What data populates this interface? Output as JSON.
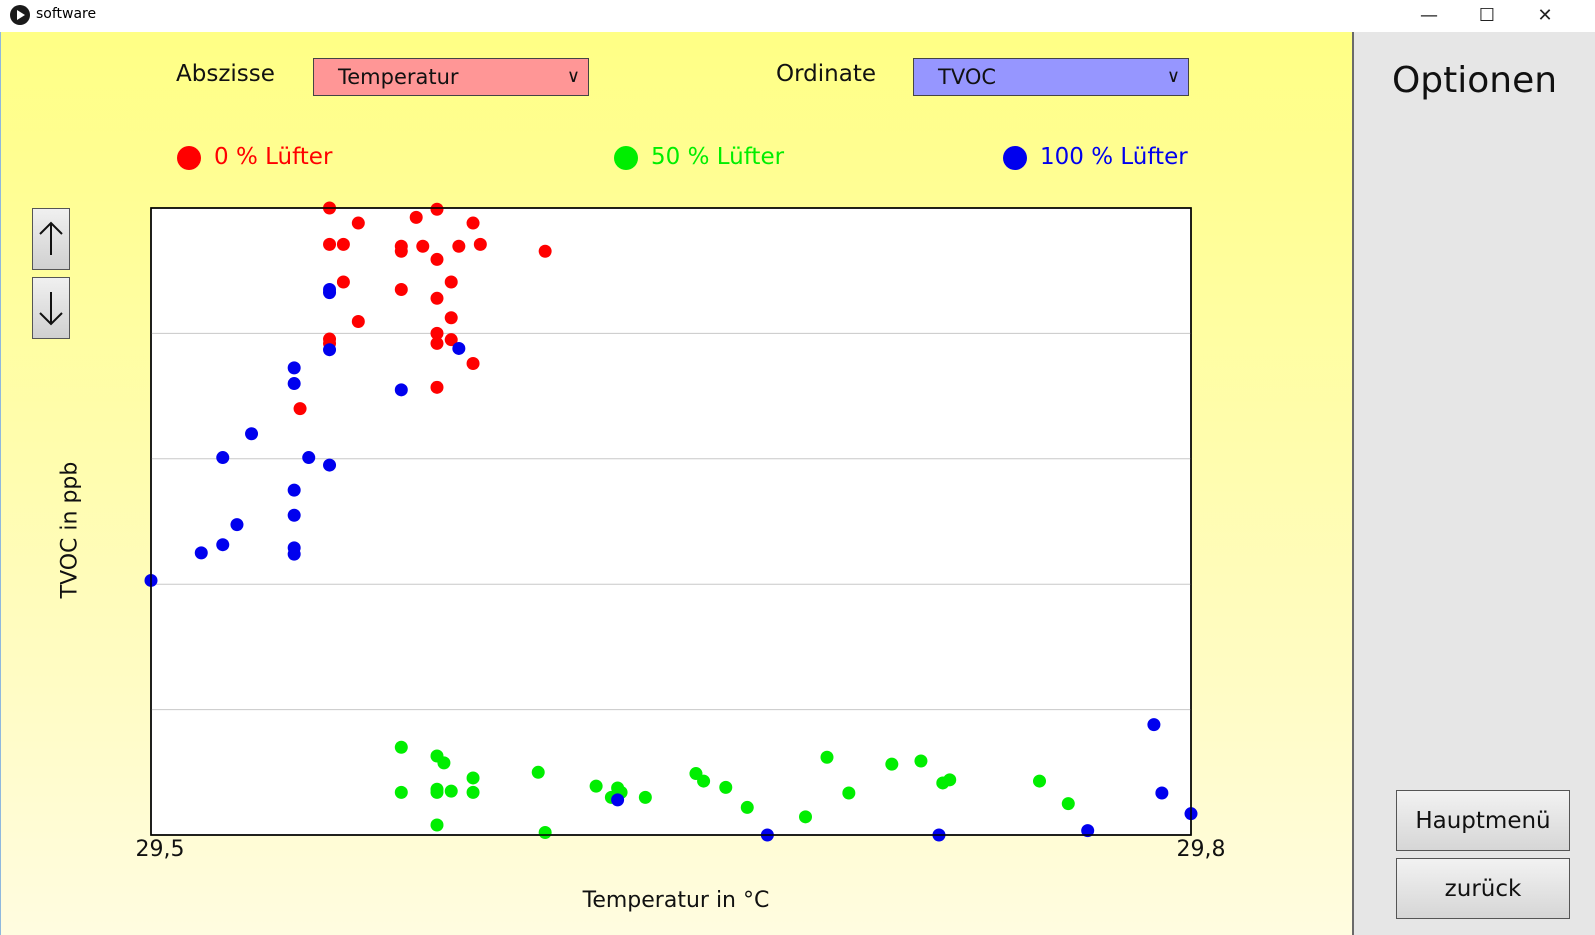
{
  "window": {
    "title": "software",
    "minimize": "—",
    "maximize": "☐",
    "close": "✕"
  },
  "controls": {
    "abscissa_label": "Abszisse",
    "abscissa_value": "Temperatur",
    "abscissa_color": "#ff9696",
    "ordinate_label": "Ordinate",
    "ordinate_value": "TVOC",
    "ordinate_color": "#9696ff"
  },
  "sidebar": {
    "title": "Optionen",
    "main_menu": "Hauptmenü",
    "back": "zurück"
  },
  "chart_data": {
    "type": "scatter",
    "xlabel": "Temperatur in °C",
    "ylabel": "TVOC in ppb",
    "xlim": [
      29.5,
      29.8
    ],
    "x_tick_labels": [
      "29,5",
      "29,8"
    ],
    "ylim": [
      0,
      1
    ],
    "grid": "horizontal",
    "legend_placement": "top",
    "series": [
      {
        "name": "0 % Lüfter",
        "color": "#ff0000",
        "points": [
          [
            29.5515,
            1.0
          ],
          [
            29.5515,
            0.942
          ],
          [
            29.5555,
            0.942
          ],
          [
            29.5598,
            0.976
          ],
          [
            29.5722,
            0.939
          ],
          [
            29.5722,
            0.931
          ],
          [
            29.5765,
            0.985
          ],
          [
            29.5784,
            0.939
          ],
          [
            29.5825,
            0.998
          ],
          [
            29.5825,
            0.918
          ],
          [
            29.5888,
            0.939
          ],
          [
            29.5929,
            0.976
          ],
          [
            29.595,
            0.942
          ],
          [
            29.5722,
            0.87
          ],
          [
            29.5825,
            0.856
          ],
          [
            29.5866,
            0.882
          ],
          [
            29.5555,
            0.882
          ],
          [
            29.5515,
            0.791
          ],
          [
            29.5515,
            0.784
          ],
          [
            29.5598,
            0.819
          ],
          [
            29.5825,
            0.8
          ],
          [
            29.5825,
            0.784
          ],
          [
            29.5866,
            0.825
          ],
          [
            29.5866,
            0.79
          ],
          [
            29.5929,
            0.752
          ],
          [
            29.6137,
            0.931
          ],
          [
            29.5825,
            0.714
          ],
          [
            29.543,
            0.68
          ]
        ]
      },
      {
        "name": "50 % Lüfter",
        "color": "#00ee00",
        "points": [
          [
            29.5722,
            0.14
          ],
          [
            29.5825,
            0.126
          ],
          [
            29.5845,
            0.115
          ],
          [
            29.5929,
            0.091
          ],
          [
            29.6117,
            0.1
          ],
          [
            29.6284,
            0.078
          ],
          [
            29.6328,
            0.06
          ],
          [
            29.6426,
            0.06
          ],
          [
            29.6572,
            0.098
          ],
          [
            29.6594,
            0.086
          ],
          [
            29.6658,
            0.076
          ],
          [
            29.672,
            0.044
          ],
          [
            29.695,
            0.124
          ],
          [
            29.6888,
            0.029
          ],
          [
            29.7013,
            0.067
          ],
          [
            29.7137,
            0.113
          ],
          [
            29.7221,
            0.118
          ],
          [
            29.7284,
            0.083
          ],
          [
            29.7304,
            0.088
          ],
          [
            29.7563,
            0.086
          ],
          [
            29.7646,
            0.05
          ],
          [
            29.5722,
            0.068
          ],
          [
            29.5825,
            0.073
          ],
          [
            29.5825,
            0.068
          ],
          [
            29.5866,
            0.07
          ],
          [
            29.5929,
            0.068
          ],
          [
            29.5825,
            0.016
          ],
          [
            29.6137,
            0.004
          ],
          [
            29.6346,
            0.075
          ],
          [
            29.6356,
            0.068
          ]
        ]
      },
      {
        "name": "100 % Lüfter",
        "color": "#0000ee",
        "points": [
          [
            29.5,
            0.406
          ],
          [
            29.5145,
            0.45
          ],
          [
            29.5207,
            0.463
          ],
          [
            29.5248,
            0.495
          ],
          [
            29.5207,
            0.602
          ],
          [
            29.529,
            0.64
          ],
          [
            29.5413,
            0.448
          ],
          [
            29.5413,
            0.458
          ],
          [
            29.5413,
            0.51
          ],
          [
            29.5413,
            0.55
          ],
          [
            29.5413,
            0.72
          ],
          [
            29.5413,
            0.745
          ],
          [
            29.5455,
            0.602
          ],
          [
            29.5515,
            0.59
          ],
          [
            29.5515,
            0.774
          ],
          [
            29.5515,
            0.865
          ],
          [
            29.5515,
            0.87
          ],
          [
            29.5722,
            0.71
          ],
          [
            29.5888,
            0.776
          ],
          [
            29.6346,
            0.056
          ],
          [
            29.6778,
            0.0
          ],
          [
            29.7273,
            0.0
          ],
          [
            29.7702,
            0.007
          ],
          [
            29.7893,
            0.176
          ],
          [
            29.7916,
            0.067
          ],
          [
            29.8,
            0.034
          ]
        ]
      }
    ]
  }
}
